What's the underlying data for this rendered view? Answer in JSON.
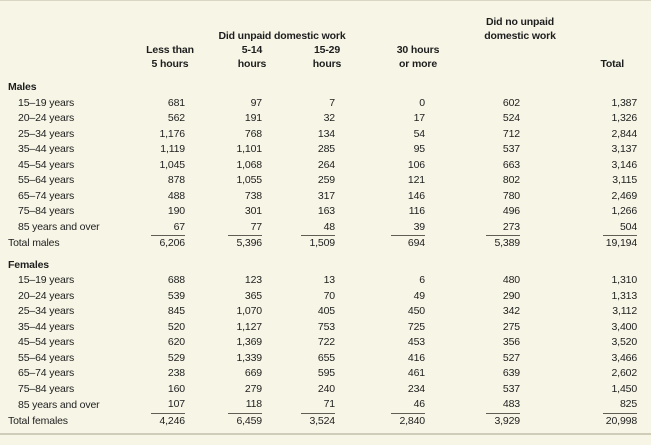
{
  "page": {
    "background_color": "#f7f5e6",
    "text_color": "#1e1e1e",
    "rule_color": "#cfccba"
  },
  "header": {
    "unpaid_group": "Did unpaid domestic work",
    "no_unpaid_group_line1": "Did no unpaid",
    "no_unpaid_group_line2": "domestic work",
    "cols": [
      {
        "line1": "Less than",
        "line2": "5 hours"
      },
      {
        "line1": "5-14",
        "line2": "hours"
      },
      {
        "line1": "15-29",
        "line2": "hours"
      },
      {
        "line1": "30 hours",
        "line2": "or more"
      }
    ],
    "total": "Total"
  },
  "chart_data": {
    "type": "table",
    "title": "",
    "column_groups": [
      "Did unpaid domestic work",
      "Did no unpaid domestic work",
      "Total"
    ],
    "columns": [
      "Less than 5 hours",
      "5-14 hours",
      "15-29 hours",
      "30 hours or more",
      "Did no unpaid domestic work",
      "Total"
    ]
  },
  "table": {
    "sections": [
      {
        "label": "Males",
        "rows": [
          {
            "label": "15–19 years",
            "values": [
              "681",
              "97",
              "7",
              "0",
              "602",
              "1,387"
            ]
          },
          {
            "label": "20–24 years",
            "values": [
              "562",
              "191",
              "32",
              "17",
              "524",
              "1,326"
            ]
          },
          {
            "label": "25–34 years",
            "values": [
              "1,176",
              "768",
              "134",
              "54",
              "712",
              "2,844"
            ]
          },
          {
            "label": "35–44 years",
            "values": [
              "1,119",
              "1,101",
              "285",
              "95",
              "537",
              "3,137"
            ]
          },
          {
            "label": "45–54 years",
            "values": [
              "1,045",
              "1,068",
              "264",
              "106",
              "663",
              "3,146"
            ]
          },
          {
            "label": "55–64 years",
            "values": [
              "878",
              "1,055",
              "259",
              "121",
              "802",
              "3,115"
            ]
          },
          {
            "label": "65–74 years",
            "values": [
              "488",
              "738",
              "317",
              "146",
              "780",
              "2,469"
            ]
          },
          {
            "label": "75–84 years",
            "values": [
              "190",
              "301",
              "163",
              "116",
              "496",
              "1,266"
            ]
          },
          {
            "label": "85 years and over",
            "values": [
              "67",
              "77",
              "48",
              "39",
              "273",
              "504"
            ],
            "underline": true
          }
        ],
        "total_row": {
          "label": "Total males",
          "values": [
            "6,206",
            "5,396",
            "1,509",
            "694",
            "5,389",
            "19,194"
          ]
        }
      },
      {
        "label": "Females",
        "rows": [
          {
            "label": "15–19 years",
            "values": [
              "688",
              "123",
              "13",
              "6",
              "480",
              "1,310"
            ]
          },
          {
            "label": "20–24 years",
            "values": [
              "539",
              "365",
              "70",
              "49",
              "290",
              "1,313"
            ]
          },
          {
            "label": "25–34 years",
            "values": [
              "845",
              "1,070",
              "405",
              "450",
              "342",
              "3,112"
            ]
          },
          {
            "label": "35–44 years",
            "values": [
              "520",
              "1,127",
              "753",
              "725",
              "275",
              "3,400"
            ]
          },
          {
            "label": "45–54 years",
            "values": [
              "620",
              "1,369",
              "722",
              "453",
              "356",
              "3,520"
            ]
          },
          {
            "label": "55–64 years",
            "values": [
              "529",
              "1,339",
              "655",
              "416",
              "527",
              "3,466"
            ]
          },
          {
            "label": "65–74 years",
            "values": [
              "238",
              "669",
              "595",
              "461",
              "639",
              "2,602"
            ]
          },
          {
            "label": "75–84 years",
            "values": [
              "160",
              "279",
              "240",
              "234",
              "537",
              "1,450"
            ]
          },
          {
            "label": "85 years and over",
            "values": [
              "107",
              "118",
              "71",
              "46",
              "483",
              "825"
            ],
            "underline": true
          }
        ],
        "total_row": {
          "label": "Total females",
          "values": [
            "4,246",
            "6,459",
            "3,524",
            "2,840",
            "3,929",
            "20,998"
          ]
        }
      }
    ]
  }
}
